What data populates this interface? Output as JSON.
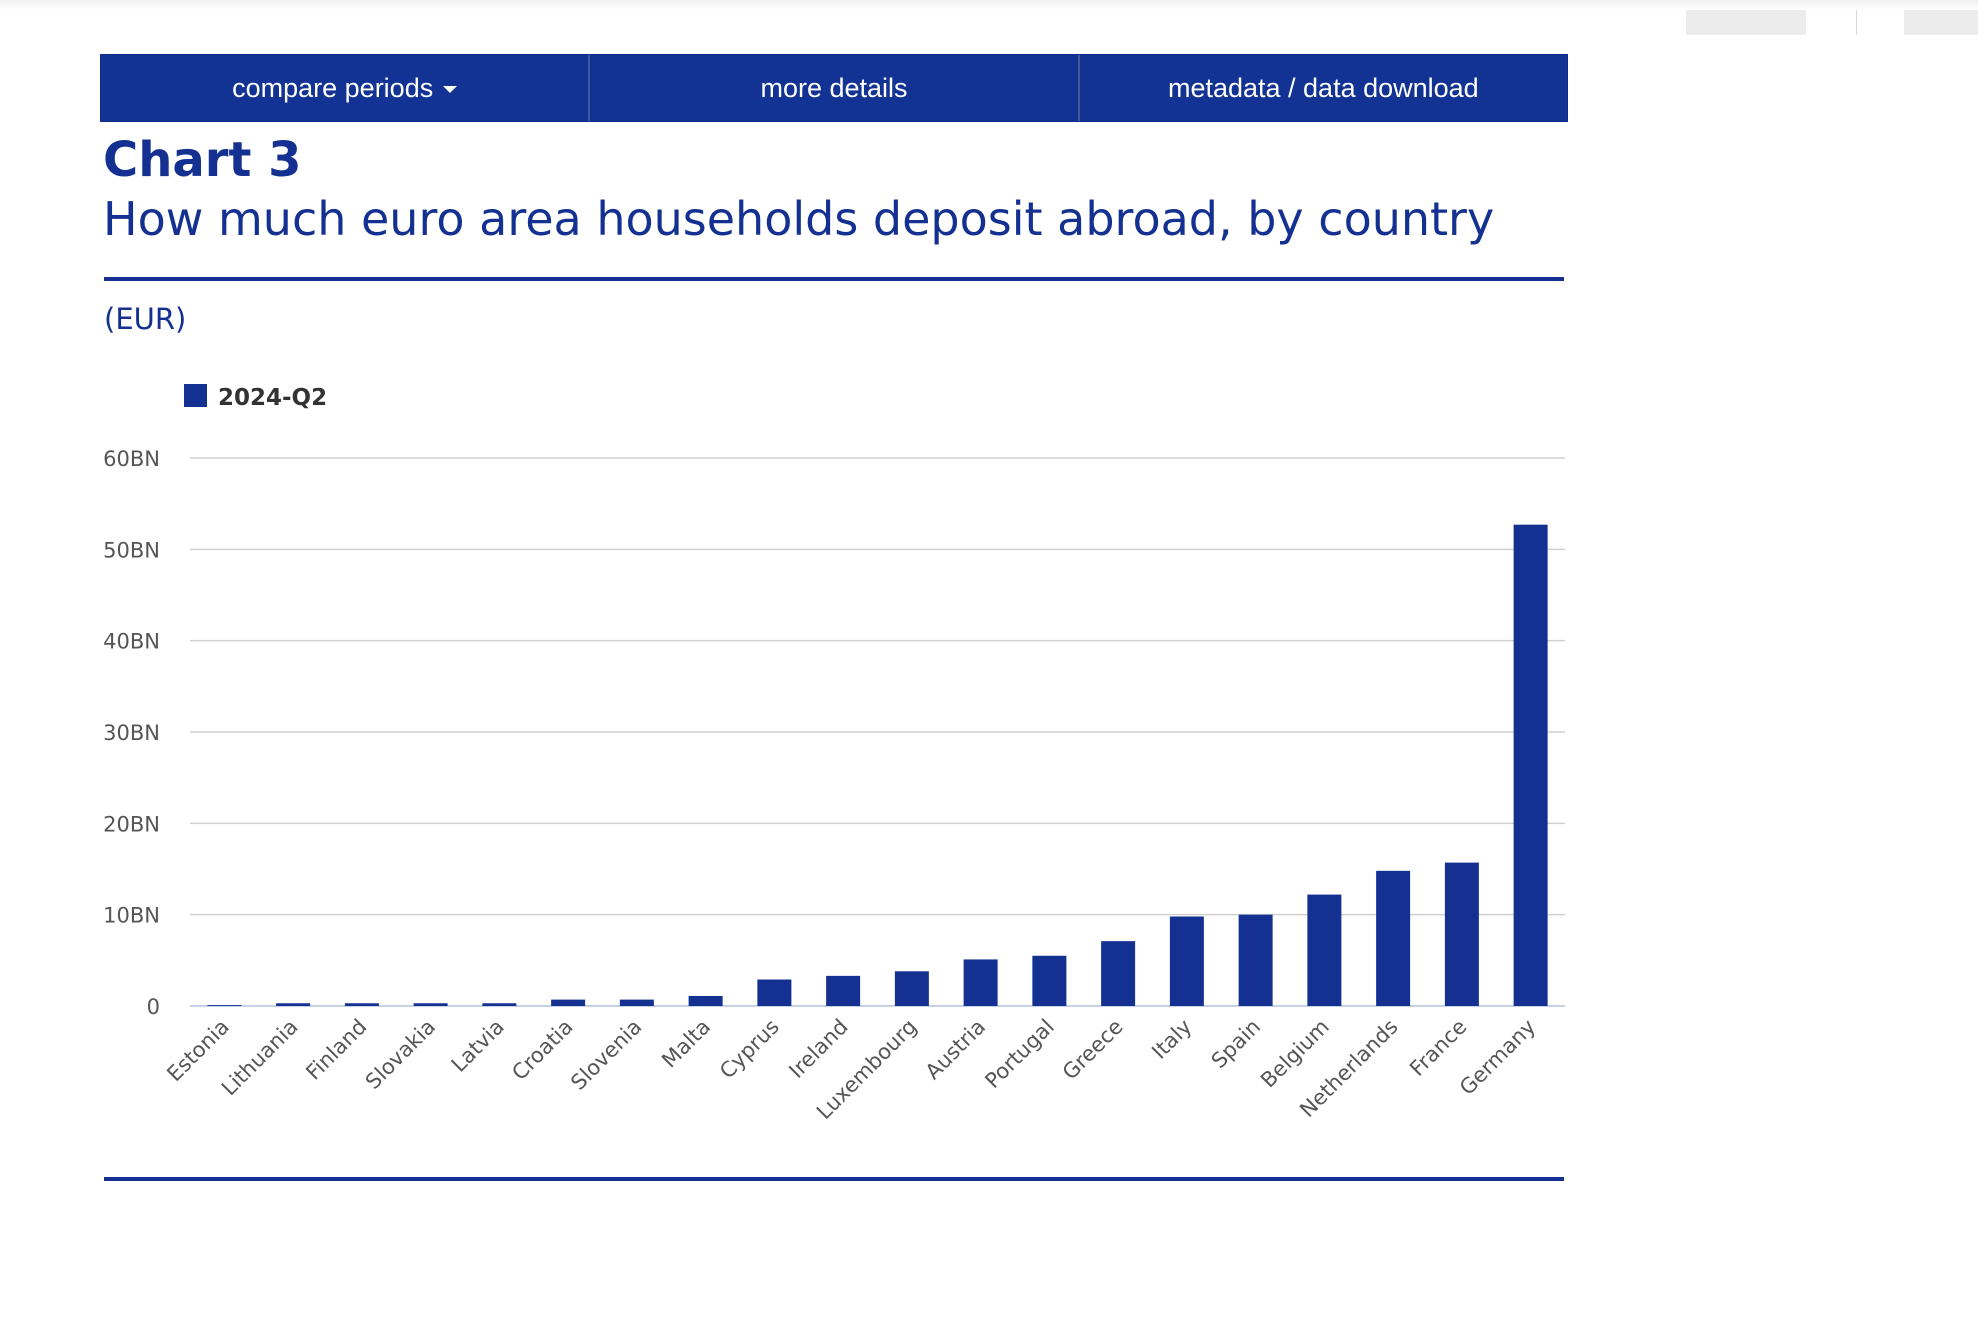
{
  "tabs": [
    {
      "label": "compare periods",
      "has_dropdown": true
    },
    {
      "label": "more details"
    },
    {
      "label": "metadata / data download"
    }
  ],
  "header": {
    "chart_label": "Chart 3",
    "title": "How much euro area households deposit abroad, by country",
    "unit": "(EUR)"
  },
  "colors": {
    "accent": "#143192",
    "bar": "#143192",
    "grid": "#d0d0d0",
    "axis_text": "#555555"
  },
  "chart_data": {
    "type": "bar",
    "categories": [
      "Estonia",
      "Lithuania",
      "Finland",
      "Slovakia",
      "Latvia",
      "Croatia",
      "Slovenia",
      "Malta",
      "Cyprus",
      "Ireland",
      "Luxembourg",
      "Austria",
      "Portugal",
      "Greece",
      "Italy",
      "Spain",
      "Belgium",
      "Netherlands",
      "France",
      "Germany"
    ],
    "series": [
      {
        "name": "2024-Q2",
        "values": [
          0.1,
          0.3,
          0.3,
          0.3,
          0.3,
          0.7,
          0.7,
          1.1,
          2.9,
          3.3,
          3.8,
          5.1,
          5.5,
          7.1,
          9.8,
          10.0,
          12.2,
          14.8,
          15.7,
          52.7
        ]
      }
    ],
    "ylim": [
      0,
      60
    ],
    "yticks": [
      0,
      10,
      20,
      30,
      40,
      50,
      60
    ],
    "ytick_labels": [
      "0",
      "10BN",
      "20BN",
      "30BN",
      "40BN",
      "50BN",
      "60BN"
    ],
    "legend": "top-left",
    "grid": true
  }
}
